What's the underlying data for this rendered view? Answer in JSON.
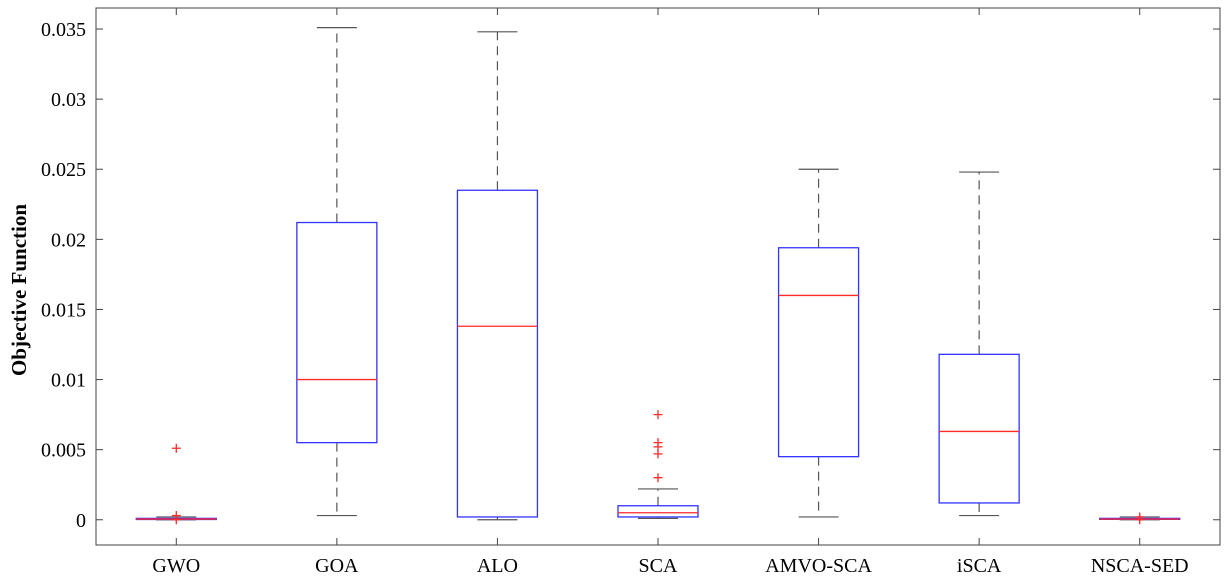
{
  "chart_data": {
    "type": "box",
    "ylabel": "Objective Function",
    "ylim": [
      -0.0018,
      0.0365
    ],
    "yticks": [
      0,
      0.005,
      0.01,
      0.015,
      0.02,
      0.025,
      0.03,
      0.035
    ],
    "ytick_labels": [
      "0",
      "0.005",
      "0.01",
      "0.015",
      "0.02",
      "0.025",
      "0.03",
      "0.035"
    ],
    "categories": [
      "GWO",
      "GOA",
      "ALO",
      "SCA",
      "AMVO-SCA",
      "iSCA",
      "NSCA-SED"
    ],
    "boxes": [
      {
        "name": "GWO",
        "whisker_low": 0.0,
        "q1": 2e-05,
        "median": 5e-05,
        "q3": 0.0001,
        "whisker_high": 0.0002,
        "outliers": [
          0.0051,
          0.0003,
          0.0
        ]
      },
      {
        "name": "GOA",
        "whisker_low": 0.0003,
        "q1": 0.0055,
        "median": 0.01,
        "q3": 0.0212,
        "whisker_high": 0.0351,
        "outliers": []
      },
      {
        "name": "ALO",
        "whisker_low": 0.0,
        "q1": 0.0002,
        "median": 0.0138,
        "q3": 0.0235,
        "whisker_high": 0.0348,
        "outliers": []
      },
      {
        "name": "SCA",
        "whisker_low": 0.0001,
        "q1": 0.0002,
        "median": 0.0005,
        "q3": 0.001,
        "whisker_high": 0.0022,
        "outliers": [
          0.003,
          0.0047,
          0.0052,
          0.0055,
          0.0075
        ]
      },
      {
        "name": "AMVO-SCA",
        "whisker_low": 0.0002,
        "q1": 0.0045,
        "median": 0.016,
        "q3": 0.0194,
        "whisker_high": 0.025,
        "outliers": []
      },
      {
        "name": "iSCA",
        "whisker_low": 0.0003,
        "q1": 0.0012,
        "median": 0.0063,
        "q3": 0.0118,
        "whisker_high": 0.0248,
        "outliers": []
      },
      {
        "name": "NSCA-SED",
        "whisker_low": 0.0,
        "q1": 3e-05,
        "median": 5e-05,
        "q3": 0.0001,
        "whisker_high": 0.0002,
        "outliers": [
          0.0002,
          0.0
        ]
      }
    ],
    "colors": {
      "box": "#3333ff",
      "median": "#ff2a2a",
      "whisker": "#555555",
      "outlier": "#ff2a2a",
      "axis": "#444444"
    },
    "grid": false,
    "legend": "none"
  }
}
